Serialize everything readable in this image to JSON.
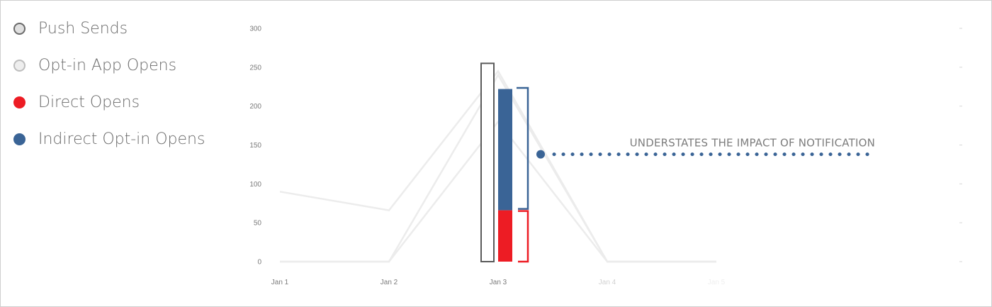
{
  "colors": {
    "push_sends": "#5a5a5a",
    "opt_in_app_opens": "#bdbdbd",
    "direct_opens": "#ed1c24",
    "indirect_opt_in_opens": "#3a6496",
    "grid": "#dedede",
    "annotation": "#3a6496"
  },
  "legend": [
    {
      "label": "Push Sends",
      "swatch_fill": "#e0e0e0",
      "swatch_stroke": "#6a6a6a",
      "icon": "circle-icon"
    },
    {
      "label": "Opt-in App Opens",
      "swatch_fill": "#eeeeee",
      "swatch_stroke": "#bdbdbd",
      "icon": "circle-icon"
    },
    {
      "label": "Direct Opens",
      "swatch_fill": "#ed1c24",
      "swatch_stroke": "#ed1c24",
      "icon": "circle-icon"
    },
    {
      "label": "Indirect Opt-in Opens",
      "swatch_fill": "#3a6496",
      "swatch_stroke": "#3a6496",
      "icon": "circle-icon"
    }
  ],
  "chart_data": {
    "type": "bar",
    "categories": [
      "Jan 1",
      "Jan 2",
      "Jan 3",
      "Jan 4",
      "Jan 5"
    ],
    "yticks": [
      "300",
      "250",
      "200",
      "150",
      "100",
      "50",
      "0"
    ],
    "ylim": [
      0,
      300
    ],
    "grid": true,
    "series": [
      {
        "name": "Push Sends",
        "values": [
          null,
          null,
          255,
          null,
          null
        ]
      },
      {
        "name": "Direct Opens",
        "values": [
          null,
          null,
          66,
          null,
          null
        ]
      },
      {
        "name": "Indirect Opt-in Opens",
        "values": [
          null,
          null,
          156,
          null,
          null
        ]
      }
    ],
    "background_lines": [
      {
        "values": [
          90,
          66,
          245,
          0,
          0
        ]
      },
      {
        "values": [
          0,
          0,
          180,
          0,
          0
        ]
      },
      {
        "values": [
          0,
          0,
          240,
          0,
          0
        ]
      }
    ],
    "annotation": {
      "text": "UNDERSTATES THE IMPACT OF NOTIFICATION",
      "y_value": 138
    }
  }
}
